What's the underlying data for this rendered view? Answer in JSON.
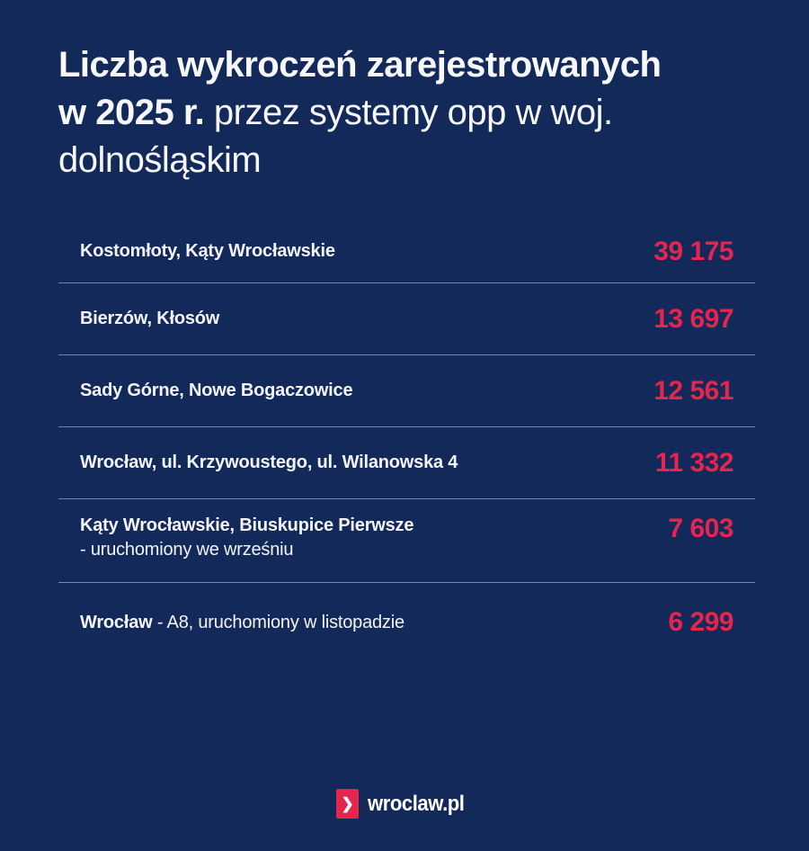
{
  "title": {
    "line1_bold": "Liczba wykroczeń zarejestrowanych",
    "line2_bold": "w 2025 r.",
    "line2_regular": " przez systemy opp w woj.",
    "line3_regular": "dolnośląskim"
  },
  "rows": [
    {
      "label": "Kostomłoty, Kąty Wrocławskie",
      "value": "39 175"
    },
    {
      "label": "Bierzów, Kłosów",
      "value": "13 697"
    },
    {
      "label": "Sady Górne, Nowe Bogaczowice",
      "value": "12 561"
    },
    {
      "label": "Wrocław, ul. Krzywoustego, ul. Wilanowska 4",
      "value": "11 332"
    },
    {
      "label": "Kąty Wrocławskie, Biuskupice Pierwsze",
      "sublabel": "- uruchomiony we wrześniu",
      "value": "7 603"
    },
    {
      "label_bold": "Wrocław",
      "label_regular": " - A8, uruchomiony w listopadzie",
      "value": "6 299"
    }
  ],
  "footer": {
    "brand": "wroclaw.pl",
    "chevron": "❯"
  },
  "colors": {
    "background": "#13295a",
    "accent_red": "#e5254d",
    "text_white": "#ffffff",
    "divider": "rgba(255,255,255,0.45)"
  },
  "chart_data": {
    "type": "table",
    "title": "Liczba wykroczeń zarejestrowanych w 2025 r. przez systemy opp w woj. dolnośląskim",
    "categories": [
      "Kostomłoty, Kąty Wrocławskie",
      "Bierzów, Kłosów",
      "Sady Górne, Nowe Bogaczowice",
      "Wrocław, ul. Krzywoustego, ul. Wilanowska 4",
      "Kąty Wrocławskie, Biuskupice Pierwsze - uruchomiony we wrześniu",
      "Wrocław - A8, uruchomiony w listopadzie"
    ],
    "values": [
      39175,
      13697,
      12561,
      11332,
      7603,
      6299
    ],
    "legend_position": "none",
    "grid": false
  }
}
